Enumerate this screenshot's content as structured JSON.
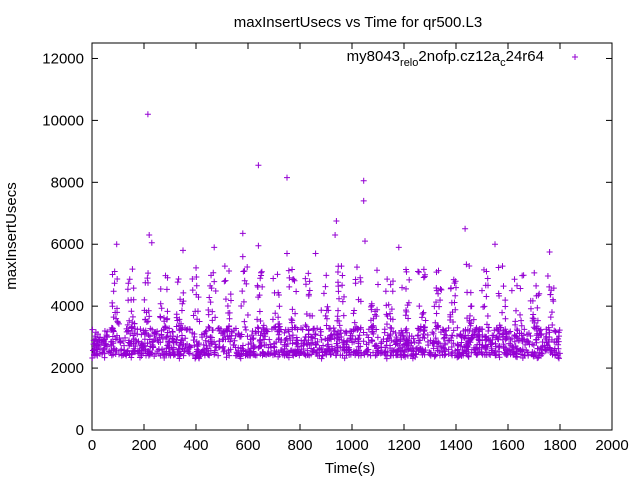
{
  "chart_data": {
    "type": "scatter",
    "title": "maxInsertUsecs vs Time for qr500.L3",
    "xlabel": "Time(s)",
    "ylabel": "maxInsertUsecs",
    "xlim": [
      0,
      2000
    ],
    "ylim": [
      0,
      12500
    ],
    "xticks": [
      "0",
      "200",
      "400",
      "600",
      "800",
      "1000",
      "1200",
      "1400",
      "1600",
      "1800",
      "2000"
    ],
    "yticks": [
      "0",
      "2000",
      "4000",
      "6000",
      "8000",
      "10000",
      "12000"
    ],
    "xtick_values": [
      0,
      200,
      400,
      600,
      800,
      1000,
      1200,
      1400,
      1600,
      1800,
      2000
    ],
    "ytick_values": [
      0,
      2000,
      4000,
      6000,
      8000,
      10000,
      12000
    ],
    "grid": false,
    "legend_position": "top-right",
    "legend": {
      "main": "my8043",
      "sub1": "rel",
      "mid1": "",
      "sub2": "o",
      "mid2": "2nofp.cz12a",
      "sub3": "c",
      "tail": "24r64"
    },
    "series": [
      {
        "marker": "+",
        "color": "#9400d3",
        "base_y_range": [
          2400,
          3300
        ],
        "x_range": [
          0,
          1800
        ],
        "spikes": [
          {
            "x": 215,
            "y": 10200
          },
          {
            "x": 640,
            "y": 8550
          },
          {
            "x": 750,
            "y": 8150
          },
          {
            "x": 1045,
            "y": 8050
          },
          {
            "x": 1045,
            "y": 7400
          },
          {
            "x": 940,
            "y": 6750
          },
          {
            "x": 1435,
            "y": 6500
          },
          {
            "x": 580,
            "y": 6350
          },
          {
            "x": 220,
            "y": 6300
          },
          {
            "x": 935,
            "y": 6300
          },
          {
            "x": 230,
            "y": 6050
          },
          {
            "x": 1050,
            "y": 6100
          },
          {
            "x": 95,
            "y": 6000
          },
          {
            "x": 1550,
            "y": 6000
          },
          {
            "x": 470,
            "y": 5900
          },
          {
            "x": 350,
            "y": 5800
          },
          {
            "x": 1180,
            "y": 5900
          },
          {
            "x": 1760,
            "y": 5750
          },
          {
            "x": 860,
            "y": 5700
          },
          {
            "x": 750,
            "y": 5700
          },
          {
            "x": 640,
            "y": 5950
          },
          {
            "x": 580,
            "y": 5600
          },
          {
            "x": 1440,
            "y": 5350
          },
          {
            "x": 1325,
            "y": 5100
          },
          {
            "x": 1660,
            "y": 5000
          },
          {
            "x": 1220,
            "y": 4850
          },
          {
            "x": 1100,
            "y": 4700
          },
          {
            "x": 1400,
            "y": 4600
          },
          {
            "x": 1500,
            "y": 4500
          },
          {
            "x": 1615,
            "y": 4500
          },
          {
            "x": 1720,
            "y": 4400
          }
        ]
      }
    ]
  }
}
